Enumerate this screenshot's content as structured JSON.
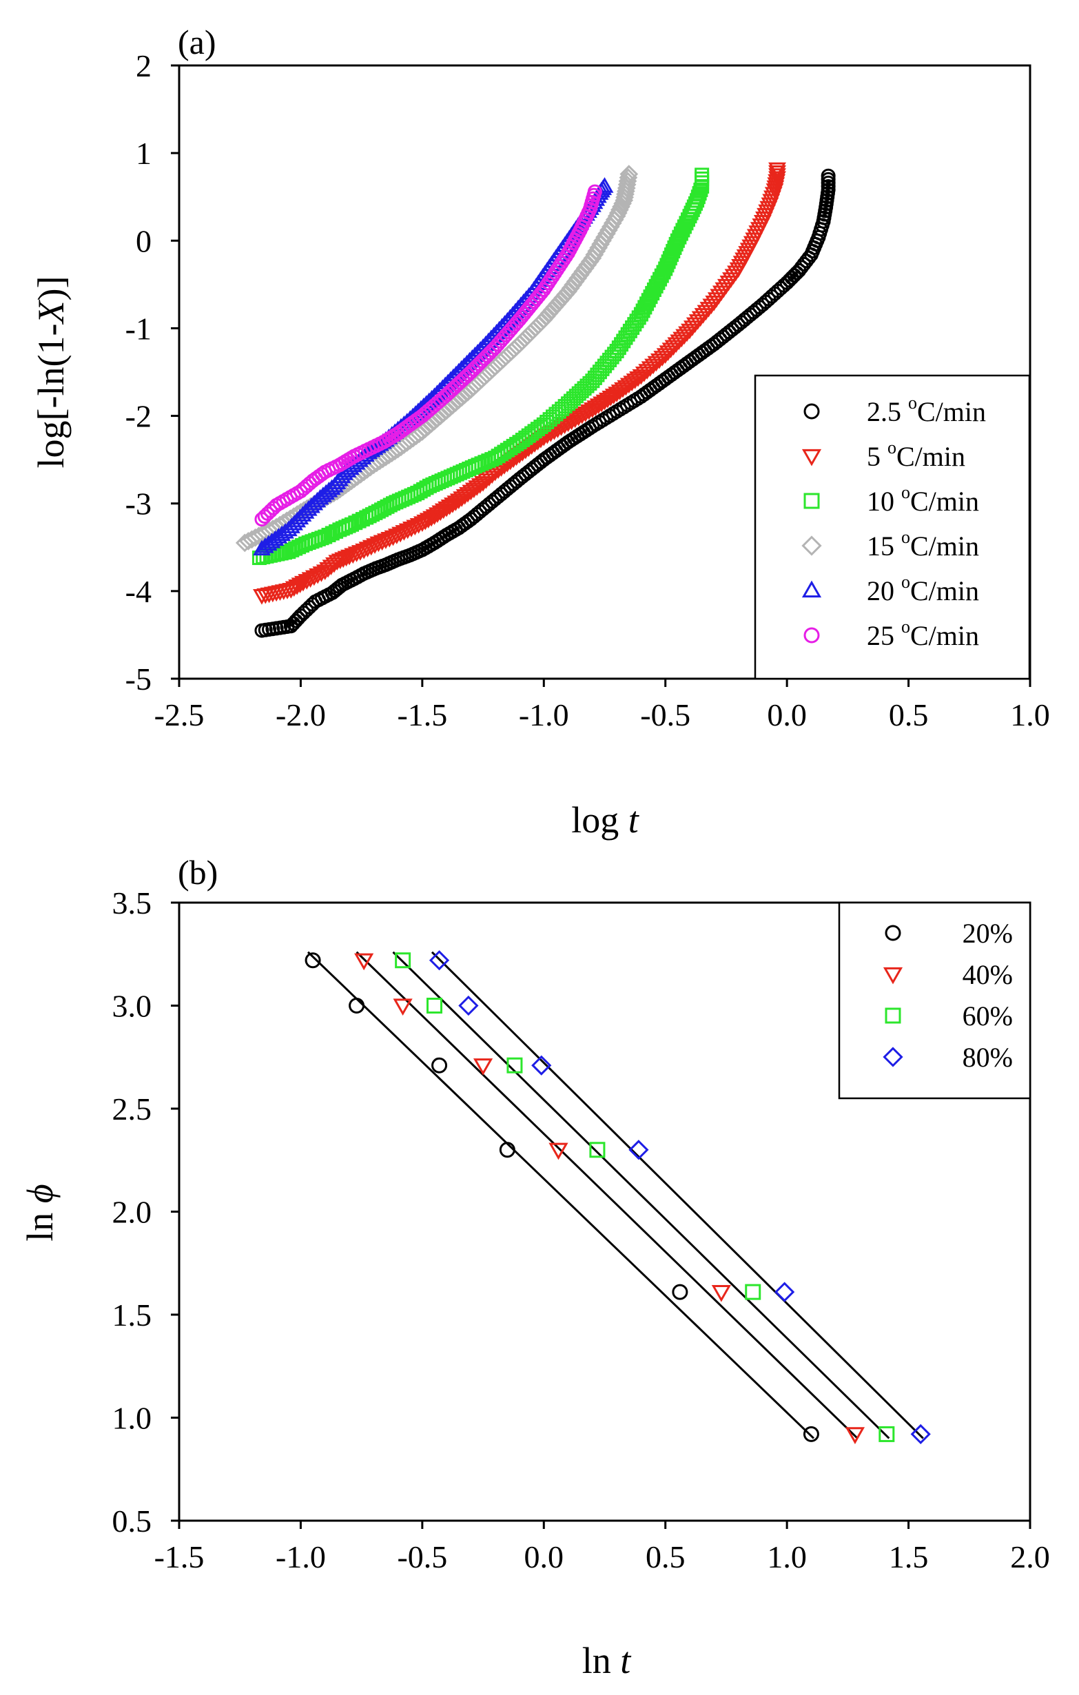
{
  "chart_data": [
    {
      "panel_label": "(a)",
      "type": "scatter",
      "ylabel_parts": [
        "log[-ln(1-",
        "X",
        ")]"
      ],
      "xlabel_parts": [
        "log ",
        "t"
      ],
      "xlim": [
        -2.5,
        1.0
      ],
      "ylim": [
        -5,
        2
      ],
      "xticks": [
        -2.5,
        -2.0,
        -1.5,
        -1.0,
        -0.5,
        0.0,
        0.5,
        1.0
      ],
      "xtick_labels": [
        "-2.5",
        "-2.0",
        "-1.5",
        "-1.0",
        "-0.5",
        "0.0",
        "0.5",
        "1.0"
      ],
      "yticks": [
        -5,
        -4,
        -3,
        -2,
        -1,
        0,
        1,
        2
      ],
      "ytick_labels": [
        "-5",
        "-4",
        "-3",
        "-2",
        "-1",
        "0",
        "1",
        "2"
      ],
      "legend_position": "lower-right",
      "series": [
        {
          "num": "2.5",
          "sup": "o",
          "unit": "C/min",
          "marker": "circle",
          "color": "#000000",
          "x": [
            -2.16,
            -2.04,
            -2.0,
            -1.94,
            -1.87,
            -1.83,
            -1.78,
            -1.74,
            -1.69,
            -1.65,
            -1.6,
            -1.55,
            -1.5,
            -1.45,
            -1.4,
            -1.35,
            -1.3,
            -1.2,
            -1.1,
            -1.0,
            -0.9,
            -0.8,
            -0.7,
            -0.6,
            -0.5,
            -0.4,
            -0.3,
            -0.2,
            -0.1,
            0.0,
            0.05,
            0.1,
            0.13,
            0.15,
            0.16,
            0.17,
            0.17
          ],
          "y": [
            -4.45,
            -4.4,
            -4.28,
            -4.12,
            -4.02,
            -3.93,
            -3.86,
            -3.8,
            -3.74,
            -3.7,
            -3.64,
            -3.59,
            -3.53,
            -3.45,
            -3.36,
            -3.28,
            -3.18,
            -2.95,
            -2.72,
            -2.5,
            -2.3,
            -2.12,
            -1.95,
            -1.78,
            -1.58,
            -1.38,
            -1.18,
            -0.96,
            -0.73,
            -0.48,
            -0.34,
            -0.16,
            0.04,
            0.22,
            0.38,
            0.58,
            0.74
          ]
        },
        {
          "num": "5",
          "sup": "o",
          "unit": "C/min",
          "marker": "triangle-down",
          "color": "#e8261b",
          "x": [
            -2.16,
            -2.04,
            -1.99,
            -1.9,
            -1.85,
            -1.8,
            -1.74,
            -1.68,
            -1.62,
            -1.56,
            -1.5,
            -1.45,
            -1.4,
            -1.35,
            -1.3,
            -1.25,
            -1.2,
            -1.1,
            -1.0,
            -0.9,
            -0.8,
            -0.7,
            -0.6,
            -0.5,
            -0.4,
            -0.3,
            -0.2,
            -0.15,
            -0.1,
            -0.07,
            -0.05,
            -0.04,
            -0.04
          ],
          "y": [
            -4.05,
            -3.98,
            -3.9,
            -3.77,
            -3.66,
            -3.6,
            -3.53,
            -3.45,
            -3.38,
            -3.3,
            -3.22,
            -3.14,
            -3.05,
            -2.96,
            -2.86,
            -2.76,
            -2.64,
            -2.44,
            -2.24,
            -2.08,
            -1.92,
            -1.74,
            -1.54,
            -1.3,
            -1.02,
            -0.7,
            -0.32,
            -0.06,
            0.22,
            0.42,
            0.58,
            0.72,
            0.82
          ]
        },
        {
          "num": "10",
          "sup": "o",
          "unit": "C/min",
          "marker": "square",
          "color": "#2ce62c",
          "x": [
            -2.17,
            -2.05,
            -1.98,
            -1.9,
            -1.84,
            -1.79,
            -1.73,
            -1.68,
            -1.62,
            -1.57,
            -1.52,
            -1.47,
            -1.42,
            -1.37,
            -1.32,
            -1.27,
            -1.2,
            -1.1,
            -1.0,
            -0.9,
            -0.8,
            -0.7,
            -0.6,
            -0.5,
            -0.45,
            -0.4,
            -0.37,
            -0.35,
            -0.35
          ],
          "y": [
            -3.62,
            -3.55,
            -3.46,
            -3.38,
            -3.3,
            -3.24,
            -3.16,
            -3.09,
            -3.0,
            -2.94,
            -2.88,
            -2.8,
            -2.74,
            -2.68,
            -2.62,
            -2.56,
            -2.48,
            -2.3,
            -2.1,
            -1.86,
            -1.6,
            -1.26,
            -0.84,
            -0.32,
            0.0,
            0.28,
            0.46,
            0.62,
            0.75
          ]
        },
        {
          "num": "15",
          "sup": "o",
          "unit": "C/min",
          "marker": "diamond",
          "color": "#b4b4b4",
          "x": [
            -2.23,
            -2.1,
            -2.0,
            -1.92,
            -1.85,
            -1.78,
            -1.7,
            -1.6,
            -1.5,
            -1.4,
            -1.3,
            -1.2,
            -1.1,
            -1.0,
            -0.9,
            -0.8,
            -0.75,
            -0.7,
            -0.67,
            -0.66,
            -0.65
          ],
          "y": [
            -3.45,
            -3.27,
            -3.1,
            -2.97,
            -2.86,
            -2.72,
            -2.56,
            -2.38,
            -2.18,
            -1.94,
            -1.7,
            -1.44,
            -1.18,
            -0.9,
            -0.58,
            -0.2,
            0.04,
            0.28,
            0.46,
            0.6,
            0.76
          ]
        },
        {
          "num": "20",
          "sup": "o",
          "unit": "C/min",
          "marker": "triangle-up",
          "color": "#1e1ee6",
          "x": [
            -2.16,
            -2.05,
            -1.98,
            -1.92,
            -1.86,
            -1.82,
            -1.77,
            -1.72,
            -1.65,
            -1.55,
            -1.45,
            -1.35,
            -1.25,
            -1.15,
            -1.05,
            -0.95,
            -0.85,
            -0.8,
            -0.77,
            -0.75
          ],
          "y": [
            -3.52,
            -3.3,
            -3.1,
            -2.94,
            -2.8,
            -2.66,
            -2.54,
            -2.42,
            -2.28,
            -2.04,
            -1.78,
            -1.5,
            -1.22,
            -0.92,
            -0.6,
            -0.2,
            0.2,
            0.4,
            0.54,
            0.62
          ]
        },
        {
          "num": "25",
          "sup": "o",
          "unit": "C/min",
          "marker": "circle",
          "color": "#e61ee6",
          "x": [
            -2.16,
            -2.1,
            -2.0,
            -1.95,
            -1.9,
            -1.84,
            -1.78,
            -1.72,
            -1.66,
            -1.6,
            -1.5,
            -1.4,
            -1.3,
            -1.2,
            -1.1,
            -1.0,
            -0.9,
            -0.85,
            -0.81,
            -0.79
          ],
          "y": [
            -3.18,
            -3.02,
            -2.86,
            -2.74,
            -2.64,
            -2.56,
            -2.46,
            -2.38,
            -2.3,
            -2.2,
            -2.0,
            -1.76,
            -1.5,
            -1.22,
            -0.9,
            -0.56,
            -0.14,
            0.12,
            0.36,
            0.56
          ]
        }
      ]
    },
    {
      "panel_label": "(b)",
      "type": "scatter",
      "ylabel_parts": [
        "ln ",
        "ϕ"
      ],
      "xlabel_parts": [
        "ln ",
        "t"
      ],
      "xlim": [
        -1.5,
        2.0
      ],
      "ylim": [
        0.5,
        3.5
      ],
      "xticks": [
        -1.5,
        -1.0,
        -0.5,
        0.0,
        0.5,
        1.0,
        1.5,
        2.0
      ],
      "xtick_labels": [
        "-1.5",
        "-1.0",
        "-0.5",
        "0.0",
        "0.5",
        "1.0",
        "1.5",
        "2.0"
      ],
      "yticks": [
        0.5,
        1.0,
        1.5,
        2.0,
        2.5,
        3.0,
        3.5
      ],
      "ytick_labels": [
        "0.5",
        "1.0",
        "1.5",
        "2.0",
        "2.5",
        "3.0",
        "3.5"
      ],
      "legend_position": "top-right",
      "series": [
        {
          "name": "20%",
          "marker": "circle",
          "color": "#000000",
          "x": [
            -0.95,
            -0.77,
            -0.43,
            -0.15,
            0.56,
            1.1
          ],
          "y": [
            3.22,
            3.0,
            2.71,
            2.3,
            1.61,
            0.92
          ],
          "fit": [
            [
              -0.97,
              3.26
            ],
            [
              1.11,
              0.9
            ]
          ]
        },
        {
          "name": "40%",
          "marker": "triangle-down",
          "color": "#e8261b",
          "x": [
            -0.74,
            -0.58,
            -0.25,
            0.06,
            0.73,
            1.28
          ],
          "y": [
            3.22,
            3.0,
            2.71,
            2.3,
            1.61,
            0.92
          ],
          "fit": [
            [
              -0.77,
              3.26
            ],
            [
              1.29,
              0.9
            ]
          ]
        },
        {
          "name": "60%",
          "marker": "square",
          "color": "#2ce62c",
          "x": [
            -0.58,
            -0.45,
            -0.12,
            0.22,
            0.86,
            1.41
          ],
          "y": [
            3.22,
            3.0,
            2.71,
            2.3,
            1.61,
            0.92
          ],
          "fit": [
            [
              -0.62,
              3.26
            ],
            [
              1.42,
              0.9
            ]
          ]
        },
        {
          "name": "80%",
          "marker": "diamond",
          "color": "#1e1ee6",
          "x": [
            -0.43,
            -0.31,
            -0.01,
            0.39,
            0.99,
            1.55
          ],
          "y": [
            3.22,
            3.0,
            2.71,
            2.3,
            1.61,
            0.92
          ],
          "fit": [
            [
              -0.46,
              3.26
            ],
            [
              1.56,
              0.9
            ]
          ]
        }
      ]
    }
  ]
}
